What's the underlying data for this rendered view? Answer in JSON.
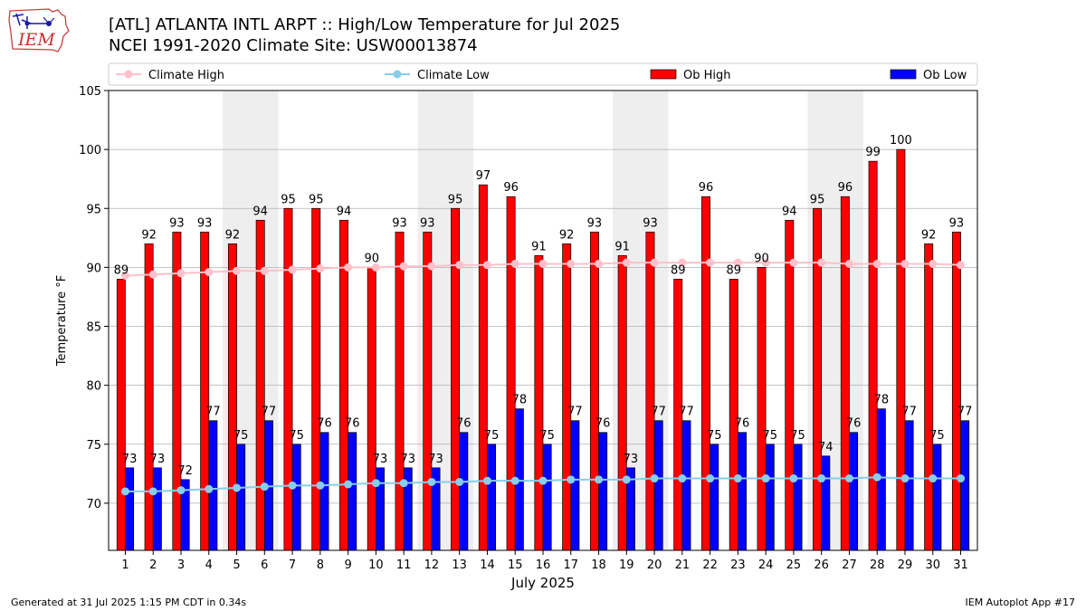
{
  "header": {
    "logo_text": "IEM",
    "title_line1": "[ATL] ATLANTA INTL ARPT :: High/Low Temperature for Jul 2025",
    "title_line2": "NCEI 1991-2020 Climate Site: USW00013874"
  },
  "footer": {
    "left": "Generated at 31 Jul 2025 1:15 PM CDT in 0.34s",
    "right": "IEM Autoplot App #17"
  },
  "colors": {
    "ob_high": "#ff0000",
    "ob_low": "#0000ff",
    "climate_high": "#ffc0cb",
    "climate_low": "#87ceeb",
    "weekend_shade": "#eeeeee",
    "grid": "#b0b0b0"
  },
  "chart_data": {
    "type": "bar",
    "xlabel": "July 2025",
    "ylabel": "Temperature °F",
    "ylim": [
      66,
      105
    ],
    "yticks": [
      70,
      75,
      80,
      85,
      90,
      95,
      100,
      105
    ],
    "grid": true,
    "legend_position": "top",
    "categories": [
      "1",
      "2",
      "3",
      "4",
      "5",
      "6",
      "7",
      "8",
      "9",
      "10",
      "11",
      "12",
      "13",
      "14",
      "15",
      "16",
      "17",
      "18",
      "19",
      "20",
      "21",
      "22",
      "23",
      "24",
      "25",
      "26",
      "27",
      "28",
      "29",
      "30",
      "31"
    ],
    "shaded_days": [
      5,
      6,
      12,
      13,
      19,
      20,
      26,
      27
    ],
    "series": [
      {
        "name": "Ob High",
        "type": "bar",
        "color": "#ff0000",
        "values": [
          89,
          92,
          93,
          93,
          92,
          94,
          95,
          95,
          94,
          90,
          93,
          93,
          95,
          97,
          96,
          91,
          92,
          93,
          91,
          93,
          89,
          96,
          89,
          90,
          94,
          95,
          96,
          99,
          100,
          92,
          93
        ]
      },
      {
        "name": "Ob Low",
        "type": "bar",
        "color": "#0000ff",
        "values": [
          73,
          73,
          72,
          77,
          75,
          77,
          75,
          76,
          76,
          73,
          73,
          73,
          76,
          75,
          78,
          75,
          77,
          76,
          73,
          77,
          77,
          75,
          76,
          75,
          75,
          74,
          76,
          78,
          77,
          75,
          77
        ]
      },
      {
        "name": "Climate High",
        "type": "line",
        "color": "#ffc0cb",
        "values": [
          89.3,
          89.4,
          89.5,
          89.6,
          89.7,
          89.7,
          89.8,
          89.9,
          90.0,
          90.0,
          90.1,
          90.1,
          90.2,
          90.2,
          90.3,
          90.3,
          90.3,
          90.3,
          90.4,
          90.4,
          90.4,
          90.4,
          90.4,
          90.4,
          90.4,
          90.4,
          90.3,
          90.3,
          90.3,
          90.3,
          90.2
        ]
      },
      {
        "name": "Climate Low",
        "type": "line",
        "color": "#87ceeb",
        "values": [
          71.0,
          71.0,
          71.1,
          71.2,
          71.3,
          71.4,
          71.5,
          71.5,
          71.6,
          71.7,
          71.7,
          71.8,
          71.8,
          71.9,
          71.9,
          71.9,
          72.0,
          72.0,
          72.0,
          72.1,
          72.1,
          72.1,
          72.1,
          72.1,
          72.1,
          72.1,
          72.1,
          72.2,
          72.1,
          72.1,
          72.1
        ]
      }
    ]
  }
}
